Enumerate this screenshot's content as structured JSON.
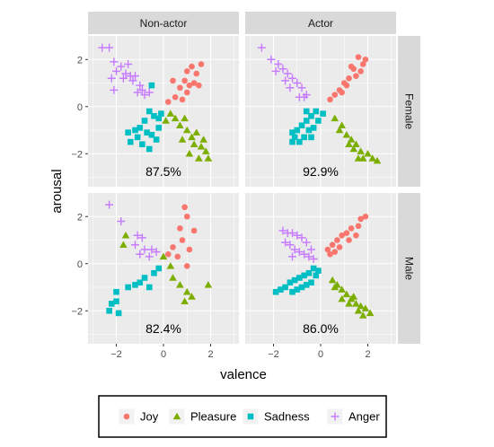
{
  "chart_data": {
    "type": "scatter",
    "x_label": "valence",
    "y_label": "arousal",
    "x_range": [
      -3.2,
      3.2
    ],
    "y_range": [
      -3.4,
      3.0
    ],
    "x_ticks": [
      -2,
      0,
      2
    ],
    "y_ticks": [
      -2,
      0,
      2
    ],
    "grid": true,
    "legend_placement": "bottom",
    "facet_columns": [
      "Non-actor",
      "Actor"
    ],
    "facet_rows": [
      "Female",
      "Male"
    ],
    "series": [
      {
        "name": "Joy",
        "shape": "circle",
        "color": "#F8766D"
      },
      {
        "name": "Pleasure",
        "shape": "triangle",
        "color": "#7CAE00"
      },
      {
        "name": "Sadness",
        "shape": "square",
        "color": "#00BFC4"
      },
      {
        "name": "Anger",
        "shape": "plus",
        "color": "#C77CFF"
      }
    ],
    "panels": [
      {
        "column": "Non-actor",
        "row": "Female",
        "accuracy": "87.5%",
        "points": {
          "Joy": [
            [
              1.0,
              1.5
            ],
            [
              1.2,
              1.7
            ],
            [
              1.4,
              1.4
            ],
            [
              1.6,
              1.8
            ],
            [
              0.9,
              1.1
            ],
            [
              1.3,
              1.0
            ],
            [
              0.7,
              0.8
            ],
            [
              1.0,
              0.6
            ],
            [
              0.5,
              0.4
            ],
            [
              0.8,
              0.3
            ],
            [
              0.4,
              1.1
            ],
            [
              1.1,
              0.9
            ],
            [
              0.2,
              0.2
            ],
            [
              1.5,
              0.9
            ]
          ],
          "Pleasure": [
            [
              0.5,
              -0.5
            ],
            [
              0.7,
              -0.8
            ],
            [
              1.0,
              -1.0
            ],
            [
              1.2,
              -1.3
            ],
            [
              1.3,
              -1.6
            ],
            [
              1.6,
              -1.7
            ],
            [
              1.8,
              -1.9
            ],
            [
              1.9,
              -2.2
            ],
            [
              0.3,
              -0.3
            ],
            [
              0.8,
              -1.4
            ],
            [
              1.1,
              -2.0
            ],
            [
              1.5,
              -2.2
            ],
            [
              0.1,
              -0.6
            ],
            [
              0.9,
              -0.5
            ],
            [
              1.4,
              -1.1
            ],
            [
              1.7,
              -1.4
            ]
          ],
          "Sadness": [
            [
              -0.6,
              -0.2
            ],
            [
              -0.4,
              -0.4
            ],
            [
              -0.2,
              -0.5
            ],
            [
              -0.8,
              -0.6
            ],
            [
              -1.0,
              -0.9
            ],
            [
              -1.2,
              -1.0
            ],
            [
              -0.7,
              -1.1
            ],
            [
              -0.5,
              -1.2
            ],
            [
              -0.3,
              -1.4
            ],
            [
              -1.1,
              -1.3
            ],
            [
              -1.4,
              -1.5
            ],
            [
              -0.9,
              -1.6
            ],
            [
              -0.6,
              -1.8
            ],
            [
              -0.2,
              -0.9
            ],
            [
              -0.5,
              0.9
            ],
            [
              -1.5,
              -1.1
            ],
            [
              -0.1,
              -0.3
            ]
          ],
          "Anger": [
            [
              -2.6,
              2.5
            ],
            [
              -2.3,
              2.5
            ],
            [
              -2.1,
              1.9
            ],
            [
              -1.8,
              1.7
            ],
            [
              -1.6,
              1.4
            ],
            [
              -1.4,
              1.3
            ],
            [
              -1.3,
              1.1
            ],
            [
              -1.0,
              0.9
            ],
            [
              -0.9,
              0.7
            ],
            [
              -1.5,
              1.8
            ],
            [
              -2.0,
              1.5
            ],
            [
              -1.1,
              0.6
            ],
            [
              -0.8,
              0.5
            ],
            [
              -0.6,
              0.6
            ],
            [
              -1.7,
              1.2
            ],
            [
              -2.2,
              1.2
            ],
            [
              -1.2,
              1.3
            ],
            [
              -2.1,
              0.7
            ]
          ]
        }
      },
      {
        "column": "Actor",
        "row": "Female",
        "accuracy": "92.9%",
        "points": {
          "Joy": [
            [
              1.6,
              2.1
            ],
            [
              1.8,
              1.8
            ],
            [
              1.4,
              1.6
            ],
            [
              1.2,
              1.2
            ],
            [
              1.0,
              1.0
            ],
            [
              0.8,
              0.7
            ],
            [
              1.5,
              1.3
            ],
            [
              1.1,
              0.9
            ],
            [
              0.6,
              0.5
            ],
            [
              0.9,
              0.6
            ],
            [
              1.7,
              1.5
            ],
            [
              0.4,
              0.3
            ],
            [
              1.3,
              1.7
            ],
            [
              1.9,
              2.0
            ]
          ],
          "Pleasure": [
            [
              0.6,
              -0.5
            ],
            [
              0.9,
              -0.8
            ],
            [
              1.1,
              -1.2
            ],
            [
              1.3,
              -1.4
            ],
            [
              1.5,
              -1.6
            ],
            [
              1.7,
              -1.9
            ],
            [
              2.0,
              -2.0
            ],
            [
              2.2,
              -2.2
            ],
            [
              2.4,
              -2.3
            ],
            [
              1.8,
              -2.2
            ],
            [
              1.4,
              -1.8
            ],
            [
              1.2,
              -1.6
            ],
            [
              0.8,
              -1.0
            ],
            [
              1.6,
              -2.2
            ]
          ],
          "Sadness": [
            [
              -0.2,
              -0.2
            ],
            [
              -0.4,
              -0.4
            ],
            [
              -0.6,
              -0.6
            ],
            [
              -0.8,
              -0.8
            ],
            [
              -1.0,
              -1.0
            ],
            [
              -1.2,
              -1.1
            ],
            [
              -0.5,
              -1.0
            ],
            [
              -0.3,
              -0.9
            ],
            [
              -0.7,
              -1.3
            ],
            [
              -0.9,
              -1.5
            ],
            [
              -1.1,
              -1.3
            ],
            [
              -0.1,
              -0.6
            ],
            [
              0.1,
              -0.3
            ],
            [
              -0.4,
              -1.3
            ],
            [
              -1.2,
              -1.5
            ],
            [
              -0.6,
              -0.2
            ]
          ],
          "Anger": [
            [
              -2.5,
              2.5
            ],
            [
              -2.1,
              2.0
            ],
            [
              -1.8,
              1.8
            ],
            [
              -1.6,
              1.6
            ],
            [
              -1.4,
              1.4
            ],
            [
              -1.2,
              1.2
            ],
            [
              -1.0,
              1.0
            ],
            [
              -0.8,
              0.8
            ],
            [
              -0.6,
              0.5
            ],
            [
              -1.5,
              1.1
            ],
            [
              -1.9,
              1.5
            ],
            [
              -0.9,
              0.4
            ],
            [
              -0.7,
              0.4
            ],
            [
              -1.3,
              0.8
            ]
          ]
        }
      },
      {
        "column": "Non-actor",
        "row": "Male",
        "accuracy": "82.4%",
        "points": {
          "Joy": [
            [
              0.9,
              2.4
            ],
            [
              1.0,
              2.0
            ],
            [
              1.3,
              1.4
            ],
            [
              0.8,
              1.0
            ],
            [
              1.1,
              0.6
            ],
            [
              0.6,
              0.3
            ],
            [
              1.0,
              -0.1
            ],
            [
              0.4,
              0.7
            ],
            [
              0.2,
              0.4
            ],
            [
              0.7,
              1.5
            ]
          ],
          "Pleasure": [
            [
              -1.6,
              1.2
            ],
            [
              -1.7,
              0.8
            ],
            [
              0.0,
              0.3
            ],
            [
              0.4,
              -0.6
            ],
            [
              0.7,
              -0.9
            ],
            [
              1.0,
              -1.2
            ],
            [
              1.2,
              -1.4
            ],
            [
              0.9,
              -1.6
            ],
            [
              0.3,
              -0.1
            ],
            [
              1.9,
              -0.9
            ]
          ],
          "Sadness": [
            [
              -0.4,
              -0.4
            ],
            [
              -0.8,
              -0.6
            ],
            [
              -1.0,
              -0.8
            ],
            [
              -1.2,
              -0.9
            ],
            [
              -1.5,
              -1.0
            ],
            [
              -2.0,
              -1.6
            ],
            [
              -1.9,
              -2.1
            ],
            [
              -2.2,
              -1.7
            ],
            [
              -2.0,
              -1.2
            ],
            [
              -2.3,
              -2.0
            ],
            [
              -0.2,
              -0.2
            ],
            [
              -0.6,
              -1.0
            ]
          ],
          "Anger": [
            [
              -2.3,
              2.5
            ],
            [
              -1.8,
              1.8
            ],
            [
              -1.1,
              1.2
            ],
            [
              -0.9,
              1.1
            ],
            [
              -1.2,
              0.8
            ],
            [
              -0.8,
              0.6
            ],
            [
              -0.5,
              0.6
            ],
            [
              -1.0,
              0.4
            ],
            [
              -0.6,
              0.3
            ],
            [
              -0.3,
              0.5
            ]
          ]
        }
      },
      {
        "column": "Actor",
        "row": "Male",
        "accuracy": "86.0%",
        "points": {
          "Joy": [
            [
              1.9,
              2.0
            ],
            [
              1.6,
              1.6
            ],
            [
              1.3,
              1.5
            ],
            [
              1.1,
              1.3
            ],
            [
              0.9,
              1.2
            ],
            [
              0.7,
              1.0
            ],
            [
              0.5,
              0.8
            ],
            [
              0.3,
              0.6
            ],
            [
              1.2,
              1.0
            ],
            [
              1.5,
              1.2
            ],
            [
              0.8,
              0.7
            ],
            [
              1.7,
              1.9
            ],
            [
              0.4,
              0.4
            ],
            [
              0.6,
              0.5
            ]
          ],
          "Pleasure": [
            [
              0.5,
              -0.7
            ],
            [
              0.7,
              -0.9
            ],
            [
              0.9,
              -1.1
            ],
            [
              1.1,
              -1.3
            ],
            [
              1.3,
              -1.5
            ],
            [
              1.5,
              -1.7
            ],
            [
              1.7,
              -1.8
            ],
            [
              1.9,
              -1.9
            ],
            [
              2.1,
              -2.1
            ],
            [
              1.6,
              -2.0
            ],
            [
              1.2,
              -1.7
            ],
            [
              0.9,
              -1.5
            ],
            [
              0.6,
              -1.0
            ],
            [
              1.8,
              -2.2
            ],
            [
              1.4,
              -1.4
            ]
          ],
          "Sadness": [
            [
              -0.3,
              -0.2
            ],
            [
              -0.5,
              -0.4
            ],
            [
              -0.7,
              -0.5
            ],
            [
              -0.9,
              -0.6
            ],
            [
              -1.1,
              -0.7
            ],
            [
              -1.3,
              -0.8
            ],
            [
              -1.5,
              -1.0
            ],
            [
              -1.7,
              -1.1
            ],
            [
              -1.9,
              -1.2
            ],
            [
              -0.4,
              -0.8
            ],
            [
              -0.6,
              -0.9
            ],
            [
              -0.8,
              -1.0
            ],
            [
              -1.2,
              -1.2
            ],
            [
              -0.2,
              -0.5
            ],
            [
              -0.1,
              -0.3
            ],
            [
              -1.0,
              -1.1
            ]
          ],
          "Anger": [
            [
              -1.6,
              1.4
            ],
            [
              -1.4,
              1.3
            ],
            [
              -1.2,
              1.3
            ],
            [
              -1.0,
              1.2
            ],
            [
              -0.8,
              1.1
            ],
            [
              -1.5,
              0.9
            ],
            [
              -1.3,
              0.8
            ],
            [
              -1.1,
              0.6
            ],
            [
              -0.9,
              0.5
            ],
            [
              -0.7,
              0.4
            ],
            [
              -0.5,
              0.3
            ],
            [
              -0.3,
              0.2
            ],
            [
              -1.2,
              0.3
            ],
            [
              -0.6,
              0.9
            ],
            [
              -0.4,
              0.6
            ]
          ]
        }
      }
    ]
  }
}
